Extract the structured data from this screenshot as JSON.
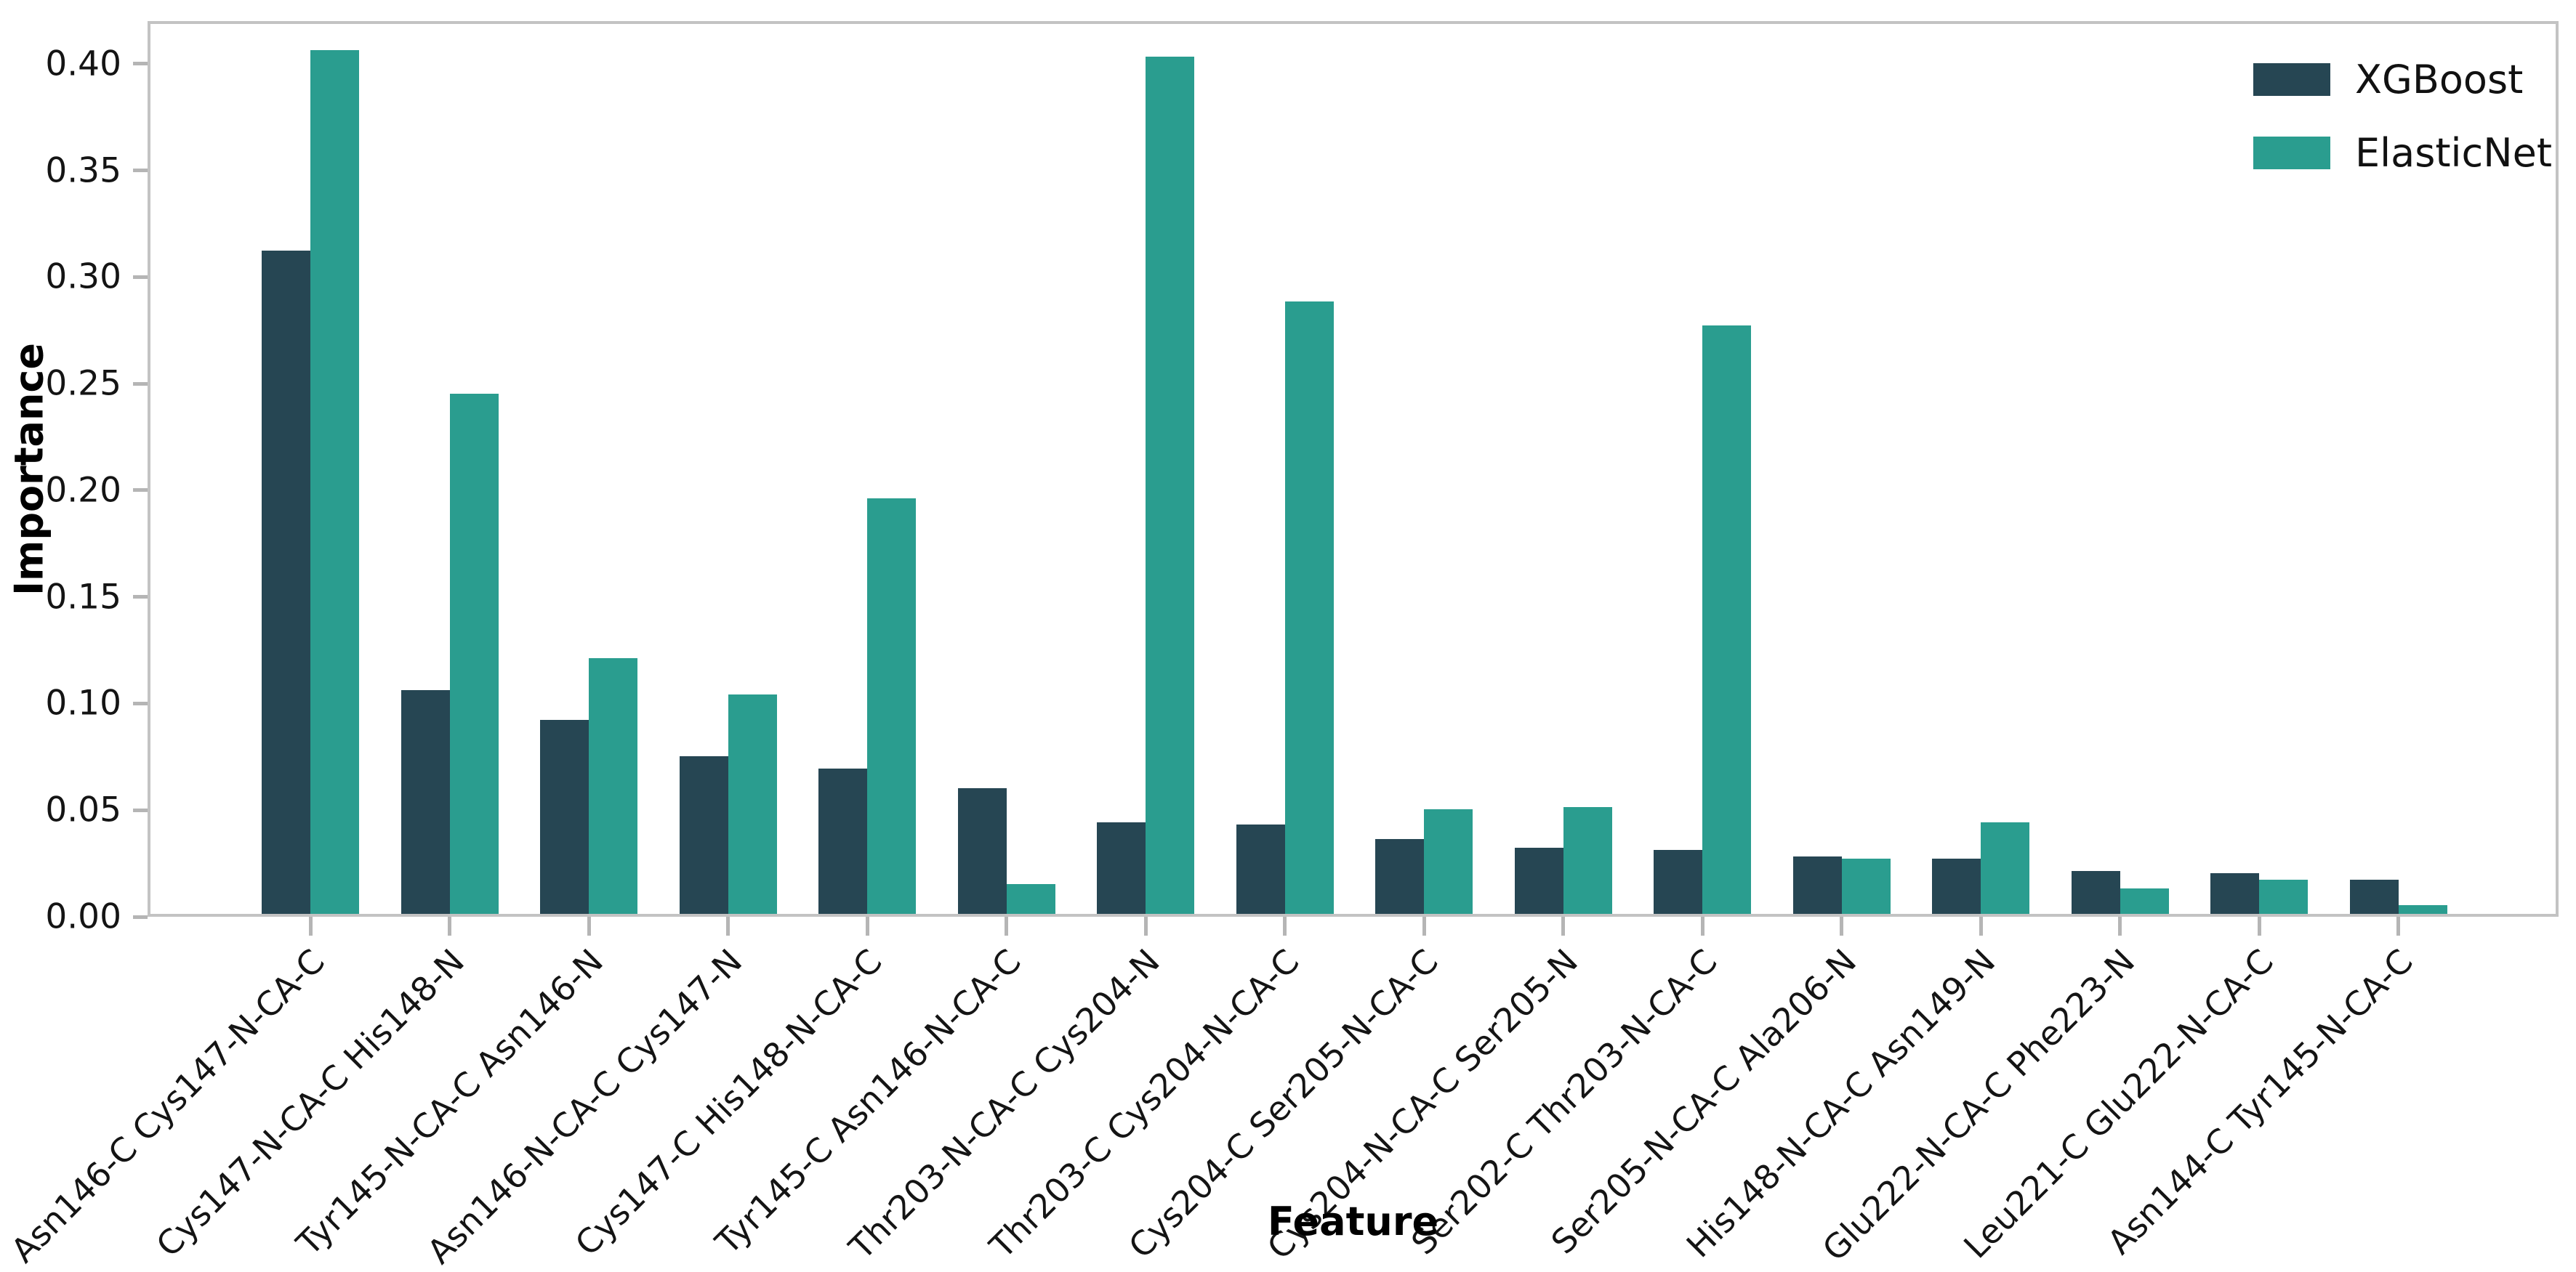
{
  "colors": {
    "xgboost": "#264653",
    "elasticnet": "#2a9d8f",
    "spine": "#c3c3c3",
    "tick": "#b5b5b5",
    "text": "#141414"
  },
  "chart_data": {
    "type": "bar",
    "title": "",
    "xlabel": "Feature",
    "ylabel": "Importance",
    "ylim": [
      0,
      0.42
    ],
    "grid": false,
    "legend_position": "upper right",
    "ytick_labels": [
      "0.00",
      "0.05",
      "0.10",
      "0.15",
      "0.20",
      "0.25",
      "0.30",
      "0.35",
      "0.40"
    ],
    "ytick_values": [
      0.0,
      0.05,
      0.1,
      0.15,
      0.2,
      0.25,
      0.3,
      0.35,
      0.4
    ],
    "categories": [
      "Asn146-C Cys147-N-CA-C",
      "Cys147-N-CA-C His148-N",
      "Tyr145-N-CA-C Asn146-N",
      "Asn146-N-CA-C Cys147-N",
      "Cys147-C His148-N-CA-C",
      "Tyr145-C Asn146-N-CA-C",
      "Thr203-N-CA-C Cys204-N",
      "Thr203-C Cys204-N-CA-C",
      "Cys204-C Ser205-N-CA-C",
      "Cys204-N-CA-C Ser205-N",
      "Ser202-C Thr203-N-CA-C",
      "Ser205-N-CA-C Ala206-N",
      "His148-N-CA-C Asn149-N",
      "Glu222-N-CA-C Phe223-N",
      "Leu221-C Glu222-N-CA-C",
      "Asn144-C Tyr145-N-CA-C"
    ],
    "series": [
      {
        "name": "XGBoost",
        "color": "#264653",
        "values": [
          0.311,
          0.105,
          0.091,
          0.074,
          0.068,
          0.059,
          0.043,
          0.042,
          0.035,
          0.031,
          0.03,
          0.027,
          0.026,
          0.02,
          0.019,
          0.016
        ]
      },
      {
        "name": "ElasticNet",
        "color": "#2a9d8f",
        "values": [
          0.405,
          0.244,
          0.12,
          0.103,
          0.195,
          0.014,
          0.402,
          0.287,
          0.049,
          0.05,
          0.276,
          0.026,
          0.043,
          0.012,
          0.016,
          0.004
        ]
      }
    ]
  }
}
